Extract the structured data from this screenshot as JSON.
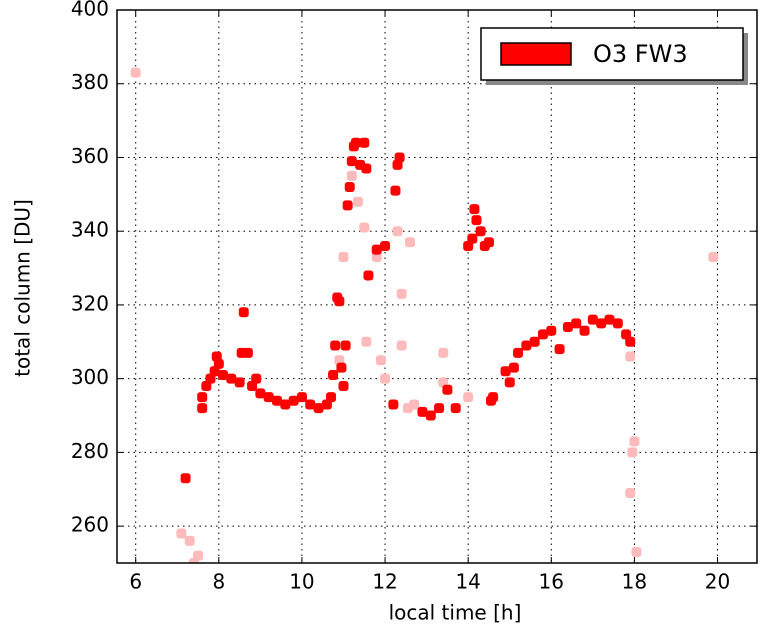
{
  "chart_data": {
    "type": "scatter",
    "x_label": "local time [h]",
    "y_label": "total column [DU]",
    "xlim": [
      5.55,
      20.95
    ],
    "ylim": [
      250,
      400
    ],
    "xticks": [
      6,
      8,
      10,
      12,
      14,
      16,
      18,
      20
    ],
    "yticks": [
      260,
      280,
      300,
      320,
      340,
      360,
      380,
      400
    ],
    "grid": true,
    "legend": "upper right",
    "series": [
      {
        "color": "#ffbbbb",
        "x": [
          6.0,
          7.1,
          7.3,
          7.5,
          7.4,
          10.9,
          11.0,
          11.2,
          11.35,
          11.5,
          11.55,
          11.8,
          11.9,
          12.0,
          12.3,
          12.4,
          12.4,
          12.55,
          12.6,
          12.7,
          13.4,
          13.4,
          14.0,
          17.9,
          17.9,
          17.95,
          18.0,
          18.05,
          19.9
        ],
        "values": [
          383,
          258,
          256,
          252,
          250,
          305,
          333,
          355,
          348,
          341,
          310,
          333,
          305,
          300,
          340,
          323,
          309,
          292,
          337,
          293,
          307,
          299,
          295,
          306,
          269,
          280,
          283,
          253,
          333
        ]
      },
      {
        "name": "O3 FW3",
        "color": "#ff0000",
        "x": [
          7.2,
          7.6,
          7.6,
          7.7,
          7.8,
          7.9,
          8.0,
          7.95,
          8.1,
          8.3,
          8.5,
          8.55,
          8.6,
          8.7,
          8.8,
          8.9,
          9.0,
          9.2,
          9.4,
          9.6,
          9.8,
          10.0,
          10.2,
          10.4,
          10.6,
          10.7,
          10.75,
          10.8,
          10.85,
          10.9,
          10.95,
          11.0,
          11.05,
          11.1,
          11.15,
          11.2,
          11.25,
          11.3,
          11.4,
          11.5,
          11.55,
          11.6,
          11.8,
          12.0,
          12.2,
          12.25,
          12.3,
          12.35,
          12.9,
          13.1,
          13.3,
          13.5,
          13.7,
          14.0,
          14.1,
          14.15,
          14.2,
          14.3,
          14.4,
          14.5,
          14.55,
          14.6,
          14.9,
          15.0,
          15.1,
          15.2,
          15.4,
          15.6,
          15.8,
          16.0,
          16.2,
          16.4,
          16.6,
          16.8,
          17.0,
          17.2,
          17.4,
          17.6,
          17.8,
          17.9
        ],
        "values": [
          273,
          292,
          295,
          298,
          300,
          302,
          304,
          306,
          301,
          300,
          299,
          307,
          318,
          307,
          298,
          300,
          296,
          295,
          294,
          293,
          294,
          295,
          293,
          292,
          293,
          295,
          301,
          309,
          322,
          321,
          303,
          298,
          309,
          347,
          352,
          359,
          363,
          364,
          358,
          364,
          357,
          328,
          335,
          336,
          293,
          351,
          358,
          360,
          291,
          290,
          292,
          297,
          292,
          336,
          338,
          346,
          343,
          340,
          336,
          337,
          294,
          295,
          302,
          299,
          303,
          307,
          309,
          310,
          312,
          313,
          308,
          314,
          315,
          313,
          316,
          315,
          316,
          315,
          312,
          310
        ]
      }
    ]
  }
}
